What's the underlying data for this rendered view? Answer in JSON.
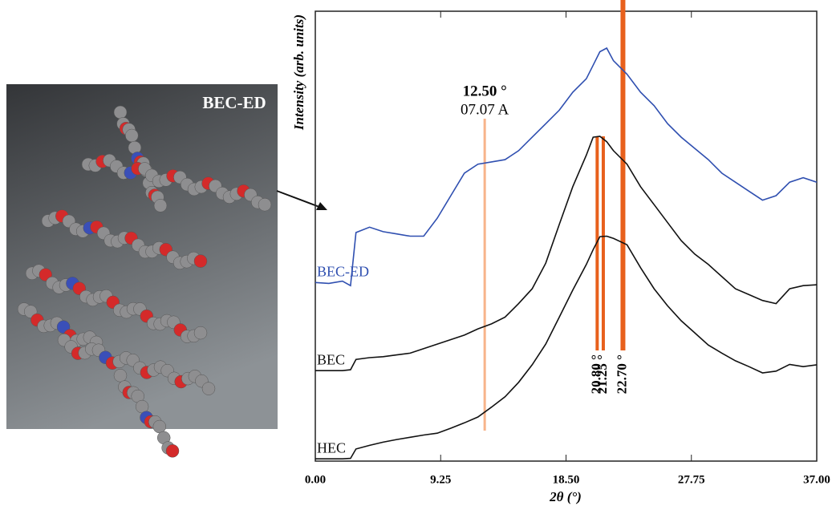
{
  "image_label": "BEC-ED",
  "chart_data": {
    "type": "line",
    "xlabel": "2θ (°)",
    "ylabel": "Intensity (arb. units)",
    "xlim": [
      0,
      37
    ],
    "ylim": [
      0,
      100
    ],
    "xticks": [
      {
        "value": 0,
        "label": "0.00"
      },
      {
        "value": 9.25,
        "label": "9.25"
      },
      {
        "value": 18.5,
        "label": "18.50"
      },
      {
        "value": 27.75,
        "label": "27.75"
      },
      {
        "value": 37,
        "label": "37.00"
      }
    ],
    "x": [
      0,
      1,
      2,
      2.6,
      3,
      4,
      5,
      6,
      7,
      8,
      9,
      10,
      11,
      12,
      13,
      14,
      15,
      16,
      17,
      18,
      19,
      20,
      20.5,
      21,
      21.5,
      22,
      23,
      24,
      25,
      26,
      27,
      28,
      29,
      30,
      31,
      32,
      33,
      34,
      35,
      36,
      37
    ],
    "series": [
      {
        "name": "BEC-ED",
        "color": "#2f4fb0",
        "values": [
          39.7,
          39.5,
          40,
          39,
          50.8,
          52,
          51,
          50.5,
          50,
          50,
          54,
          59,
          64,
          66,
          66.5,
          67,
          69,
          72,
          75,
          78,
          82,
          85,
          88,
          91,
          91.8,
          89,
          86,
          82,
          79,
          75,
          72,
          69.5,
          67,
          64,
          62,
          60,
          58,
          59,
          62,
          63,
          62
        ]
      },
      {
        "name": "BEC",
        "color": "#111111",
        "values": [
          20.1,
          20.1,
          20.1,
          20.3,
          22.6,
          23,
          23.2,
          23.6,
          24,
          25,
          26,
          27,
          28,
          29.4,
          30.5,
          32,
          35,
          38.3,
          44,
          52.6,
          61,
          68,
          72,
          72.2,
          71,
          69,
          66,
          61,
          57,
          53,
          49,
          46,
          43.7,
          41,
          38.3,
          37,
          35.7,
          35,
          38.3,
          39,
          39.2
        ]
      },
      {
        "name": "HEC",
        "color": "#111111",
        "values": [
          0.5,
          0.5,
          0.5,
          0.6,
          2.7,
          3.5,
          4.2,
          4.8,
          5.3,
          5.8,
          6.2,
          7.3,
          8.5,
          9.8,
          12,
          14.3,
          17.5,
          21.4,
          26,
          32,
          38,
          43.7,
          47,
          49.9,
          50,
          49.5,
          48.1,
          43,
          38.3,
          34.5,
          31.2,
          28.5,
          25.8,
          24,
          22.3,
          21,
          19.6,
          20,
          21.5,
          21,
          21.4
        ]
      }
    ],
    "annotations": [
      {
        "x": 12.5,
        "label": "12.50 °",
        "sublabel": "07.07 A",
        "color": "#f7b48a"
      },
      {
        "x": 20.8,
        "label": "20.80 °",
        "color": "#e8601c"
      },
      {
        "x": 22.7,
        "label": "22.70 °",
        "color": "#e8601c"
      },
      {
        "x": 21.25,
        "label": "21.25 °",
        "color": "#e8601c"
      }
    ]
  }
}
